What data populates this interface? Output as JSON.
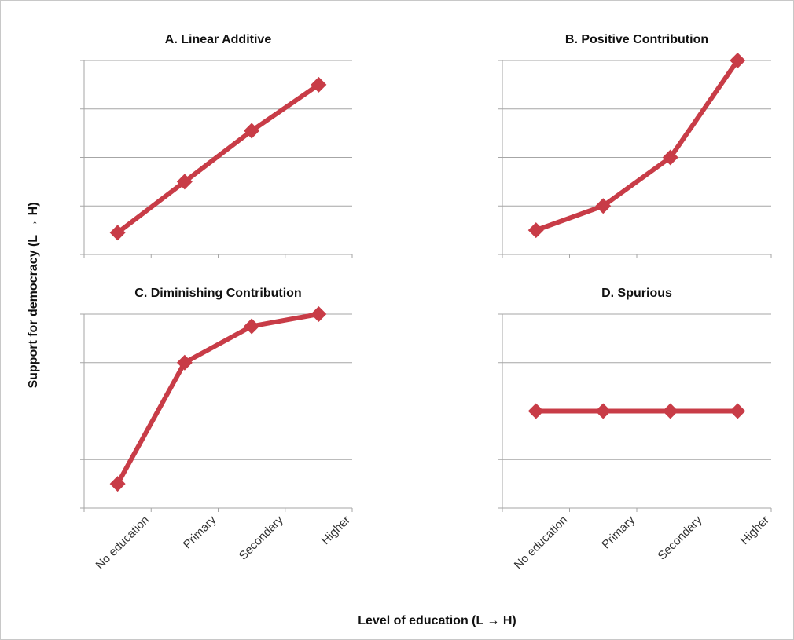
{
  "chart_data": {
    "type": "line",
    "ylabel": "Support for democracy (L → H)",
    "xlabel": "Level of education (L → H)",
    "categories": [
      "No education",
      "Primary",
      "Secondary",
      "Higher"
    ],
    "ylim": [
      0,
      4
    ],
    "grid": true,
    "series_color": "#c83c47",
    "marker": "diamond",
    "panels": [
      {
        "title": "A. Linear Additive",
        "values": [
          0.45,
          1.5,
          2.55,
          3.5
        ]
      },
      {
        "title": "B. Positive Contribution",
        "values": [
          0.5,
          1.0,
          2.0,
          4.0
        ]
      },
      {
        "title": "C. Diminishing Contribution",
        "values": [
          0.5,
          3.0,
          3.75,
          4.0
        ]
      },
      {
        "title": "D. Spurious",
        "values": [
          2.0,
          2.0,
          2.0,
          2.0
        ]
      }
    ]
  }
}
